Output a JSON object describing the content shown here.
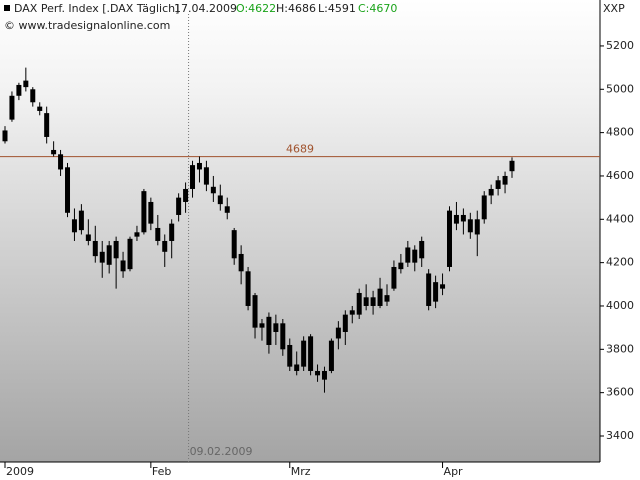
{
  "chart_data": {
    "type": "candlestick",
    "header": {
      "symbol": "DAX Perf. Index [.DAX Täglich]",
      "date": "17.04.2009",
      "open": "O:4622",
      "high": "H:4686",
      "low": "L:4591",
      "close": "C:4670",
      "copyright": "© www.tradesignalonline.com",
      "axis_name": "XXP"
    },
    "open": [
      4760,
      4860,
      4970,
      5010,
      5000,
      4920,
      4890,
      4720,
      4700,
      4640,
      4400,
      4440,
      4330,
      4300,
      4250,
      4280,
      4300,
      4210,
      4170,
      4340,
      4340,
      4480,
      4360,
      4250,
      4300,
      4420,
      4480,
      4540,
      4630,
      4640,
      4550,
      4510,
      4460,
      4350,
      4240,
      4160,
      4050,
      3920,
      3950,
      3920,
      3920,
      3820,
      3730,
      3720,
      3860,
      3700,
      3700,
      3700,
      3850,
      3880,
      3960,
      3960,
      4040,
      4040,
      4000,
      4050,
      4080,
      4200,
      4200,
      4260,
      4220,
      4150,
      4020,
      4100,
      4180,
      4420,
      4390,
      4400,
      4330,
      4400,
      4510,
      4540,
      4560,
      4622
    ],
    "high": [
      4830,
      4990,
      5030,
      5100,
      5010,
      4940,
      4920,
      4760,
      4720,
      4660,
      4450,
      4470,
      4400,
      4370,
      4300,
      4300,
      4320,
      4250,
      4320,
      4370,
      4540,
      4500,
      4420,
      4330,
      4400,
      4520,
      4570,
      4670,
      4690,
      4670,
      4600,
      4560,
      4500,
      4360,
      4280,
      4180,
      4060,
      3940,
      3970,
      3960,
      3940,
      3850,
      3790,
      3860,
      3870,
      3730,
      3720,
      3850,
      3930,
      3980,
      4000,
      4080,
      4100,
      4070,
      4130,
      4100,
      4210,
      4240,
      4300,
      4280,
      4320,
      4170,
      4140,
      4150,
      4460,
      4480,
      4450,
      4430,
      4440,
      4530,
      4560,
      4600,
      4620,
      4686
    ],
    "low": [
      4750,
      4850,
      4950,
      4990,
      4920,
      4880,
      4750,
      4690,
      4600,
      4410,
      4300,
      4330,
      4280,
      4200,
      4130,
      4150,
      4080,
      4130,
      4160,
      4300,
      4330,
      4350,
      4280,
      4180,
      4220,
      4390,
      4430,
      4500,
      4570,
      4530,
      4480,
      4440,
      4400,
      4190,
      4100,
      3980,
      3850,
      3840,
      3780,
      3820,
      3770,
      3700,
      3680,
      3700,
      3680,
      3650,
      3600,
      3690,
      3800,
      3820,
      3920,
      3940,
      3980,
      3960,
      3990,
      4000,
      4070,
      4150,
      4180,
      4160,
      4180,
      3980,
      3990,
      4050,
      4160,
      4350,
      4330,
      4310,
      4230,
      4380,
      4470,
      4510,
      4520,
      4591
    ],
    "close": [
      4810,
      4970,
      5020,
      5040,
      4940,
      4900,
      4780,
      4700,
      4630,
      4430,
      4340,
      4350,
      4300,
      4230,
      4200,
      4190,
      4220,
      4160,
      4310,
      4320,
      4530,
      4380,
      4300,
      4300,
      4380,
      4500,
      4540,
      4650,
      4660,
      4560,
      4520,
      4470,
      4430,
      4220,
      4160,
      4000,
      3900,
      3900,
      3820,
      3880,
      3800,
      3720,
      3700,
      3840,
      3700,
      3680,
      3660,
      3840,
      3900,
      3960,
      3980,
      4060,
      4000,
      4000,
      4080,
      4020,
      4180,
      4170,
      4270,
      4200,
      4300,
      4000,
      4110,
      4080,
      4440,
      4380,
      4420,
      4340,
      4400,
      4510,
      4540,
      4580,
      4600,
      4670
    ],
    "color": "#000000",
    "ylim": [
      3280,
      5412
    ],
    "yticks": [
      3400,
      3600,
      3800,
      4000,
      4200,
      4400,
      4600,
      4800,
      5000,
      5200
    ],
    "xticks": [
      {
        "value": 0,
        "label": "2009"
      },
      {
        "value": 21,
        "label": "Feb"
      },
      {
        "value": 41,
        "label": "Mrz"
      },
      {
        "value": 63,
        "label": "Apr"
      }
    ],
    "hline": {
      "value": 4689,
      "color": "#a0522d"
    },
    "marker": {
      "index": 26,
      "label": "09.02.2009"
    }
  }
}
